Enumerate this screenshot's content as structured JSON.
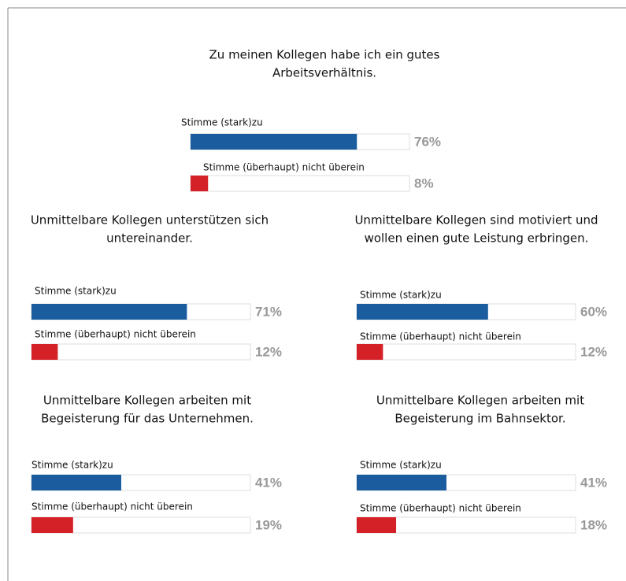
{
  "chart_data": [
    {
      "type": "bar",
      "title": [
        "Zu meinen Kollegen habe ich ein gutes",
        "Arbeitsverhältnis."
      ],
      "categories": [
        "Stimme (stark)zu",
        "Stimme (überhaupt) nicht überein"
      ],
      "values": [
        76,
        8
      ],
      "value_labels": [
        "76%",
        "8%"
      ],
      "colors": [
        "#1a5c9e",
        "#d42027"
      ],
      "xlim": [
        0,
        100
      ]
    },
    {
      "type": "bar",
      "title": [
        "Unmittelbare Kollegen unterstützen sich",
        "untereinander."
      ],
      "categories": [
        "Stimme (stark)zu",
        "Stimme (überhaupt) nicht überein"
      ],
      "values": [
        71,
        12
      ],
      "value_labels": [
        "71%",
        "12%"
      ],
      "colors": [
        "#1a5c9e",
        "#d42027"
      ],
      "xlim": [
        0,
        100
      ]
    },
    {
      "type": "bar",
      "title": [
        "Unmittelbare Kollegen sind motiviert und",
        "wollen einen gute Leistung erbringen."
      ],
      "categories": [
        "Stimme (stark)zu",
        "Stimme (überhaupt) nicht überein"
      ],
      "values": [
        60,
        12
      ],
      "value_labels": [
        "60%",
        "12%"
      ],
      "colors": [
        "#1a5c9e",
        "#d42027"
      ],
      "xlim": [
        0,
        100
      ]
    },
    {
      "type": "bar",
      "title": [
        "Unmittelbare Kollegen arbeiten mit",
        "Begeisterung für das Unternehmen."
      ],
      "categories": [
        "Stimme (stark)zu",
        "Stimme (überhaupt) nicht überein"
      ],
      "values": [
        41,
        19
      ],
      "value_labels": [
        "41%",
        "19%"
      ],
      "colors": [
        "#1a5c9e",
        "#d42027"
      ],
      "xlim": [
        0,
        100
      ]
    },
    {
      "type": "bar",
      "title": [
        "Unmittelbare Kollegen arbeiten mit",
        "Begeisterung im Bahnsektor."
      ],
      "categories": [
        "Stimme (stark)zu",
        "Stimme (überhaupt) nicht überein"
      ],
      "values": [
        41,
        18
      ],
      "value_labels": [
        "41%",
        "18%"
      ],
      "colors": [
        "#1a5c9e",
        "#d42027"
      ],
      "xlim": [
        0,
        100
      ]
    }
  ]
}
